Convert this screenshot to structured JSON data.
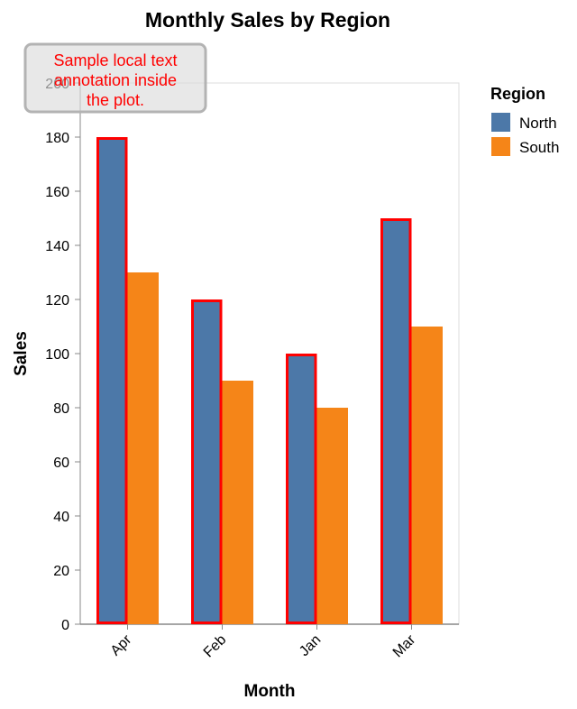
{
  "chart_data": {
    "type": "bar",
    "title": "Monthly Sales by Region",
    "xlabel": "Month",
    "ylabel": "Sales",
    "categories": [
      "Apr",
      "Feb",
      "Jan",
      "Mar"
    ],
    "series": [
      {
        "name": "North",
        "values": [
          180,
          120,
          100,
          150
        ],
        "color": "#4c78a8",
        "highlight_color": "#ff0000"
      },
      {
        "name": "South",
        "values": [
          130,
          90,
          80,
          110
        ],
        "color": "#f58518"
      }
    ],
    "ylim": [
      0,
      200
    ],
    "yticks": [
      0,
      20,
      40,
      60,
      80,
      100,
      120,
      140,
      160,
      180,
      200
    ],
    "legend": {
      "title": "Region",
      "placement": "right"
    },
    "annotation": {
      "text_lines": [
        "Sample local text",
        "annotation inside",
        "the plot."
      ],
      "color": "#ff0000"
    },
    "grid": false
  }
}
